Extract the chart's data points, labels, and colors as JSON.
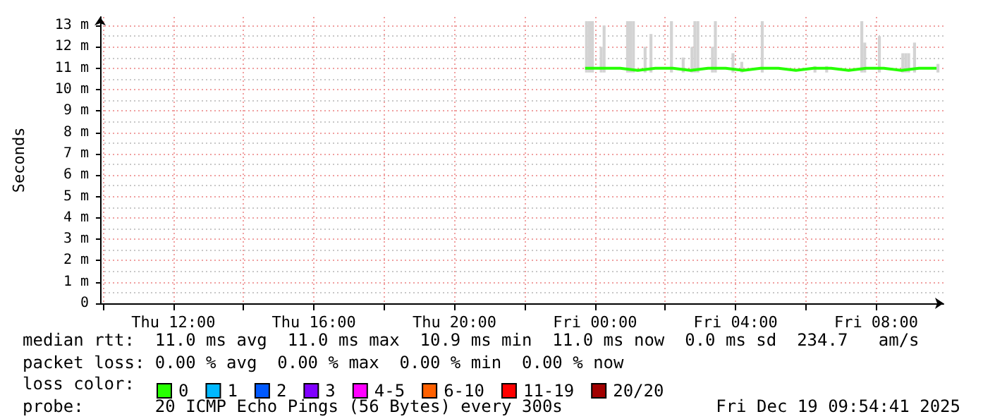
{
  "chart_data": {
    "type": "line",
    "ylabel": "Seconds",
    "legend_title": "loss color:",
    "legend": "bottom",
    "grid": true,
    "xlim": [
      "2025-12-18T09:55",
      "2025-12-19T09:55"
    ],
    "xticks": [
      {
        "value": "2025-12-18T10:00",
        "label": null
      },
      {
        "value": "2025-12-18T12:00",
        "label": "Thu 12:00"
      },
      {
        "value": "2025-12-18T14:00",
        "label": null
      },
      {
        "value": "2025-12-18T16:00",
        "label": "Thu 16:00"
      },
      {
        "value": "2025-12-18T18:00",
        "label": null
      },
      {
        "value": "2025-12-18T20:00",
        "label": "Thu 20:00"
      },
      {
        "value": "2025-12-18T22:00",
        "label": null
      },
      {
        "value": "2025-12-19T00:00",
        "label": "Fri 00:00"
      },
      {
        "value": "2025-12-19T02:00",
        "label": null
      },
      {
        "value": "2025-12-19T04:00",
        "label": "Fri 04:00"
      },
      {
        "value": "2025-12-19T06:00",
        "label": null
      },
      {
        "value": "2025-12-19T08:00",
        "label": "Fri 08:00"
      }
    ],
    "ylim": [
      0,
      13.4
    ],
    "yticks": [
      0,
      {
        "value": 1,
        "label": "1 m"
      },
      {
        "value": 2,
        "label": "2 m"
      },
      {
        "value": 3,
        "label": "3 m"
      },
      {
        "value": 4,
        "label": "4 m"
      },
      {
        "value": 5,
        "label": "5 m"
      },
      {
        "value": 6,
        "label": "6 m"
      },
      {
        "value": 7,
        "label": "7 m"
      },
      {
        "value": 8,
        "label": "8 m"
      },
      {
        "value": 9,
        "label": "9 m"
      },
      {
        "value": 10,
        "label": "10 m"
      },
      {
        "value": 11,
        "label": "11 m"
      },
      {
        "value": 12,
        "label": "12 m"
      },
      {
        "value": 13,
        "label": "13 m"
      }
    ],
    "series": [
      {
        "type": "bar",
        "color": "#d3d3d3",
        "x": [
          "2025-12-18T23:43",
          "2025-12-18T23:48",
          "2025-12-18T23:53",
          "2025-12-19T00:08",
          "2025-12-19T00:13",
          "2025-12-19T00:53",
          "2025-12-19T00:58",
          "2025-12-19T01:03",
          "2025-12-19T01:23",
          "2025-12-19T01:33",
          "2025-12-19T02:08",
          "2025-12-19T02:28",
          "2025-12-19T02:43",
          "2025-12-19T02:48",
          "2025-12-19T02:53",
          "2025-12-19T03:18",
          "2025-12-19T03:23",
          "2025-12-19T03:53",
          "2025-12-19T04:08",
          "2025-12-19T04:43",
          "2025-12-19T06:13",
          "2025-12-19T06:33",
          "2025-12-19T07:33",
          "2025-12-19T07:38",
          "2025-12-19T08:03",
          "2025-12-19T08:43",
          "2025-12-19T08:48",
          "2025-12-19T08:53",
          "2025-12-19T09:03",
          "2025-12-19T09:43"
        ],
        "base": [
          10.8,
          10.8,
          10.8,
          10.8,
          10.8,
          10.8,
          10.8,
          10.8,
          10.8,
          10.8,
          10.8,
          10.8,
          10.8,
          10.8,
          10.8,
          10.8,
          10.8,
          10.8,
          10.8,
          10.8,
          10.8,
          10.8,
          10.8,
          10.8,
          10.8,
          10.8,
          10.8,
          10.8,
          10.8,
          10.8
        ],
        "values": [
          2.4,
          2.4,
          2.4,
          1.2,
          2.2,
          2.4,
          2.4,
          2.4,
          1.2,
          1.8,
          2.4,
          0.7,
          1.2,
          2.4,
          2.4,
          1.2,
          2.4,
          0.9,
          0.5,
          2.4,
          0.3,
          0.3,
          2.4,
          1.4,
          1.7,
          0.9,
          0.9,
          0.9,
          1.4,
          0.4
        ]
      },
      {
        "name": "0",
        "color": "#26ff00",
        "x": [
          "2025-12-18T23:43",
          "2025-12-19T00:13",
          "2025-12-19T00:43",
          "2025-12-19T01:13",
          "2025-12-19T01:43",
          "2025-12-19T02:13",
          "2025-12-19T02:43",
          "2025-12-19T03:13",
          "2025-12-19T03:43",
          "2025-12-19T04:13",
          "2025-12-19T04:43",
          "2025-12-19T05:13",
          "2025-12-19T05:43",
          "2025-12-19T06:13",
          "2025-12-19T06:43",
          "2025-12-19T07:13",
          "2025-12-19T07:43",
          "2025-12-19T08:13",
          "2025-12-19T08:43",
          "2025-12-19T09:13",
          "2025-12-19T09:43"
        ],
        "values": [
          11.0,
          11.0,
          11.0,
          10.9,
          11.0,
          11.0,
          10.9,
          11.0,
          11.0,
          10.9,
          11.0,
          11.0,
          10.9,
          11.0,
          11.0,
          10.9,
          11.0,
          11.0,
          10.9,
          11.0,
          11.0
        ]
      },
      {
        "name": "1",
        "color": "#00b8ff"
      },
      {
        "name": "2",
        "color": "#0059ff"
      },
      {
        "name": "3",
        "color": "#8000ff"
      },
      {
        "name": "4-5",
        "color": "#ff00ff"
      },
      {
        "name": "6-10",
        "color": "#ff6000"
      },
      {
        "name": "11-19",
        "color": "#ff0000"
      },
      {
        "name": "20/20",
        "color": "#a10000"
      }
    ],
    "annotations": [
      "median rtt:  11.0 ms avg  11.0 ms max  10.9 ms min  11.0 ms now  0.0 ms sd  234.7   am/s",
      "packet loss: 0.00 % avg  0.00 % max  0.00 % min  0.00 % now",
      "probe:       20 ICMP Echo Pings (56 Bytes) every 300s",
      "Fri Dec 19 09:54:41 2025"
    ]
  }
}
